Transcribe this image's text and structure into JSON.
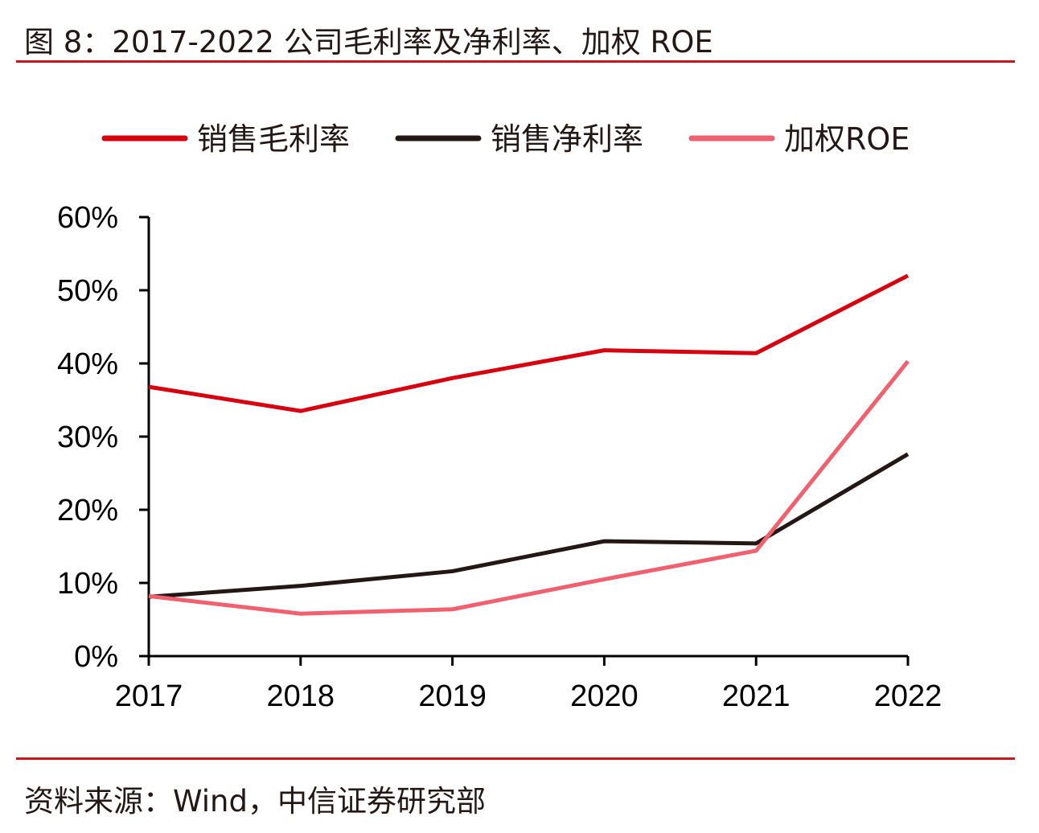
{
  "title": "图 8：2017-2022 公司毛利率及净利率、加权 ROE",
  "source": "资料来源：Wind，中信证券研究部",
  "chart_data": {
    "type": "line",
    "title": "",
    "xlabel": "",
    "ylabel": "",
    "categories": [
      "2017",
      "2018",
      "2019",
      "2020",
      "2021",
      "2022"
    ],
    "ylim": [
      0,
      60
    ],
    "yticks": [
      0,
      10,
      20,
      30,
      40,
      50,
      60
    ],
    "ytick_labels": [
      "0%",
      "10%",
      "20%",
      "30%",
      "40%",
      "50%",
      "60%"
    ],
    "grid": false,
    "legend_placement": "top",
    "series": [
      {
        "name": "销售毛利率",
        "color": "#d7000f",
        "values": [
          36.8,
          33.5,
          38.0,
          41.8,
          41.4,
          52.0
        ]
      },
      {
        "name": "销售净利率",
        "color": "#231815",
        "values": [
          8.1,
          9.6,
          11.6,
          15.7,
          15.4,
          27.6
        ]
      },
      {
        "name": "加权ROE",
        "color": "#f0606e",
        "values": [
          8.2,
          5.8,
          6.4,
          10.5,
          14.4,
          40.3
        ]
      }
    ]
  }
}
